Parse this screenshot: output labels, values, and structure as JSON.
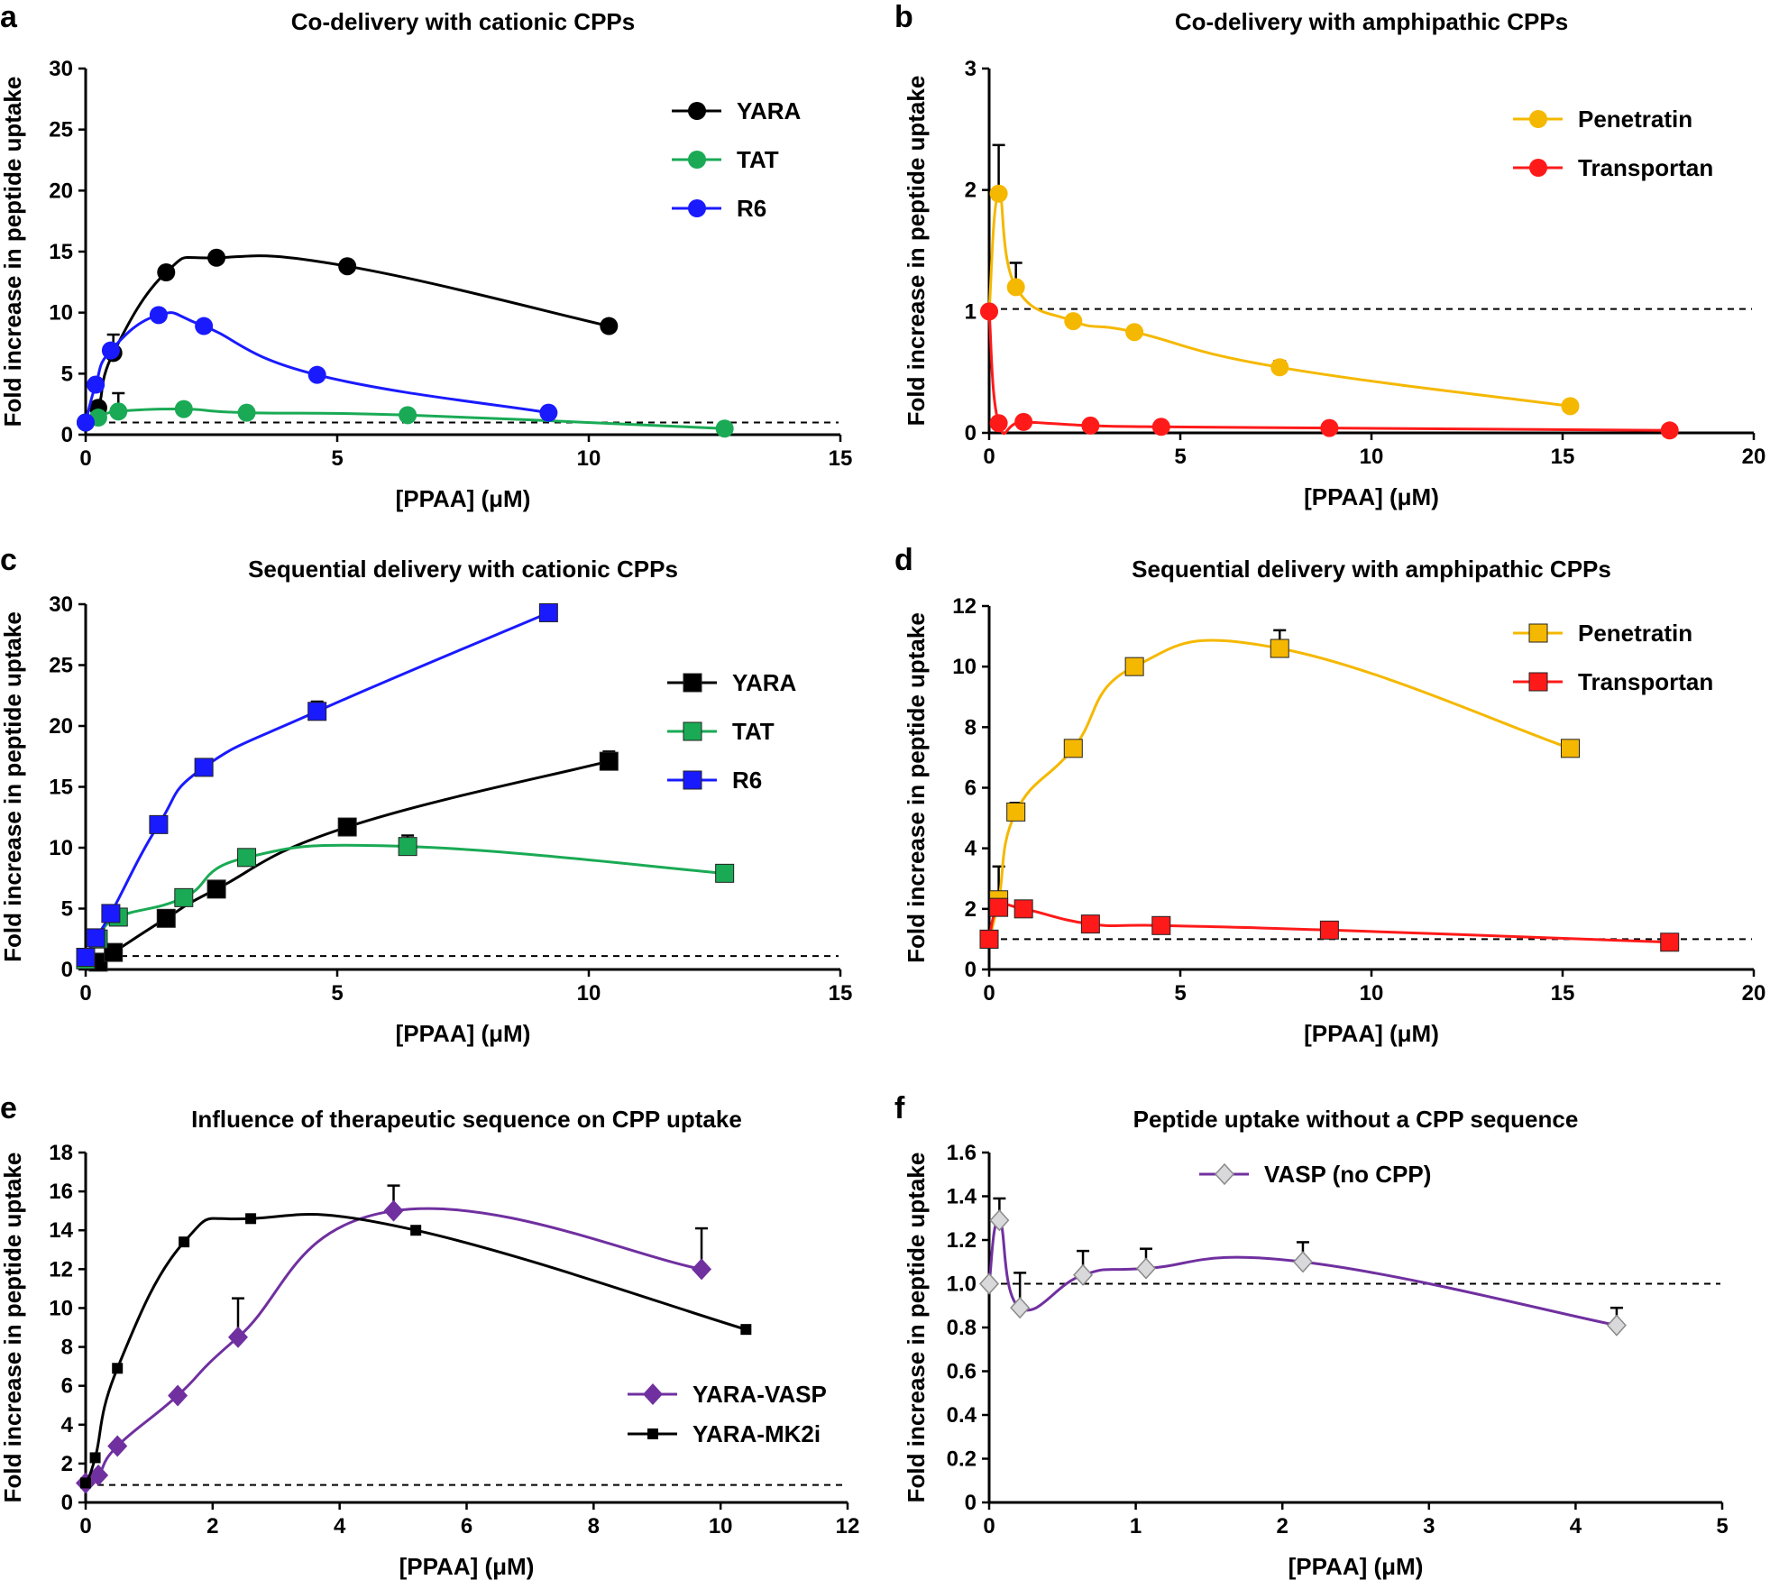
{
  "chart_data": [
    {
      "panel": "a",
      "type": "line",
      "title": "Co-delivery with cationic CPPs",
      "xlabel": "[PPAA] (μM)",
      "ylabel": "Fold increase in peptide uptake",
      "xlim": [
        0,
        15
      ],
      "ylim": [
        0,
        30
      ],
      "xticks": [
        0,
        5,
        10,
        15
      ],
      "yticks": [
        0,
        5,
        10,
        15,
        20,
        25,
        30
      ],
      "reference_line": 1,
      "legend_position": "top-right",
      "marker": "circle",
      "series": [
        {
          "name": "YARA",
          "color": "#000000",
          "x": [
            0,
            0.25,
            0.55,
            1.6,
            2.6,
            5.2,
            10.4
          ],
          "y": [
            1,
            2.2,
            6.7,
            13.3,
            14.5,
            13.8,
            8.9
          ],
          "err": [
            0,
            0,
            1.5,
            0,
            0,
            0,
            0
          ]
        },
        {
          "name": "TAT",
          "color": "#1aaa55",
          "x": [
            0,
            0.25,
            0.65,
            1.95,
            3.2,
            6.4,
            12.7
          ],
          "y": [
            1,
            1.4,
            1.9,
            2.1,
            1.8,
            1.6,
            0.5
          ],
          "err": [
            0,
            0,
            1.5,
            0,
            0,
            0,
            0
          ]
        },
        {
          "name": "R6",
          "color": "#1a1aff",
          "x": [
            0,
            0.2,
            0.5,
            1.45,
            2.35,
            4.6,
            9.2
          ],
          "y": [
            1,
            4.1,
            6.9,
            9.8,
            8.9,
            4.9,
            1.8
          ],
          "err": [
            0,
            0,
            0,
            0,
            0,
            0,
            0
          ]
        }
      ]
    },
    {
      "panel": "b",
      "type": "line",
      "title": "Co-delivery with  amphipathic CPPs",
      "xlabel": "[PPAA] (μM)",
      "ylabel": "Fold increase in peptide uptake",
      "xlim": [
        0,
        20
      ],
      "ylim": [
        0,
        3
      ],
      "xticks": [
        0,
        5,
        10,
        15,
        20
      ],
      "yticks": [
        0,
        1,
        2,
        3
      ],
      "reference_line": 1.02,
      "legend_position": "top-right",
      "marker": "circle",
      "series": [
        {
          "name": "Penetratin",
          "color": "#f5b800",
          "x": [
            0,
            0.25,
            0.7,
            2.2,
            3.8,
            7.6,
            15.2
          ],
          "y": [
            1,
            1.97,
            1.2,
            0.92,
            0.83,
            0.54,
            0.22
          ],
          "err": [
            0,
            0.4,
            0.2,
            0,
            0,
            0.05,
            0
          ]
        },
        {
          "name": "Transportan",
          "color": "#ff1a1a",
          "x": [
            0,
            0.25,
            0.9,
            2.65,
            4.5,
            8.9,
            17.8
          ],
          "y": [
            1,
            0.08,
            0.09,
            0.06,
            0.05,
            0.04,
            0.02
          ],
          "err": [
            0,
            0,
            0,
            0,
            0,
            0,
            0
          ]
        }
      ]
    },
    {
      "panel": "c",
      "type": "line",
      "title": "Sequential delivery with cationic CPPs",
      "xlabel": "[PPAA] (μM)",
      "ylabel": "Fold increase in peptide uptake",
      "xlim": [
        0,
        15
      ],
      "ylim": [
        0,
        30
      ],
      "xticks": [
        0,
        5,
        10,
        15
      ],
      "yticks": [
        0,
        5,
        10,
        15,
        20,
        25,
        30
      ],
      "reference_line": 1.1,
      "legend_position": "top-right",
      "marker": "square",
      "series": [
        {
          "name": "YARA",
          "color": "#000000",
          "x": [
            0,
            0.25,
            0.55,
            1.6,
            2.6,
            5.2,
            10.4
          ],
          "y": [
            0.8,
            0.6,
            1.4,
            4.2,
            6.6,
            11.7,
            17.1
          ],
          "err": [
            0,
            0,
            0,
            0,
            0,
            0,
            0.8
          ]
        },
        {
          "name": "TAT",
          "color": "#1aaa55",
          "x": [
            0,
            0.25,
            0.65,
            1.95,
            3.2,
            6.4,
            12.7
          ],
          "y": [
            0.8,
            2.5,
            4.3,
            5.9,
            9.2,
            10.1,
            7.9
          ],
          "err": [
            0,
            0,
            0,
            0,
            0,
            0.9,
            0
          ]
        },
        {
          "name": "R6",
          "color": "#1a1aff",
          "x": [
            0,
            0.2,
            0.5,
            1.45,
            2.35,
            4.6,
            9.2
          ],
          "y": [
            1,
            2.6,
            4.6,
            11.9,
            16.6,
            21.2,
            29.3
          ],
          "err": [
            0,
            0,
            0,
            0,
            0,
            0.8,
            0
          ]
        }
      ]
    },
    {
      "panel": "d",
      "type": "line",
      "title": "Sequential delivery with amphipathic CPPs",
      "xlabel": "[PPAA] (μM)",
      "ylabel": "Fold increase in peptide uptake",
      "xlim": [
        0,
        20
      ],
      "ylim": [
        0,
        12
      ],
      "xticks": [
        0,
        5,
        10,
        15,
        20
      ],
      "yticks": [
        0,
        2,
        4,
        6,
        8,
        10,
        12
      ],
      "reference_line": 1,
      "legend_position": "top-right",
      "marker": "square",
      "series": [
        {
          "name": "Penetratin",
          "color": "#f5b800",
          "x": [
            0,
            0.25,
            0.7,
            2.2,
            3.8,
            7.6,
            15.2
          ],
          "y": [
            1,
            2.3,
            5.2,
            7.3,
            10.0,
            10.6,
            7.3
          ],
          "err": [
            0,
            1.1,
            0.3,
            0,
            0,
            0.6,
            0
          ]
        },
        {
          "name": "Transportan",
          "color": "#ff1a1a",
          "x": [
            0,
            0.25,
            0.9,
            2.65,
            4.5,
            8.9,
            17.8
          ],
          "y": [
            1,
            2.05,
            2.0,
            1.5,
            1.45,
            1.3,
            0.9
          ],
          "err": [
            0,
            0,
            0,
            0.1,
            0,
            0,
            0
          ]
        }
      ]
    },
    {
      "panel": "e",
      "type": "line",
      "title": "Influence of therapeutic sequence on CPP uptake",
      "xlabel": "[PPAA] (μM)",
      "ylabel": "Fold increase in peptide uptake",
      "xlim": [
        0,
        12
      ],
      "ylim": [
        0,
        18
      ],
      "xticks": [
        0,
        2,
        4,
        6,
        8,
        10,
        12
      ],
      "yticks": [
        0,
        2,
        4,
        6,
        8,
        10,
        12,
        14,
        16,
        18
      ],
      "reference_line": 0.9,
      "legend_position": "bottom-right",
      "series": [
        {
          "name": "YARA-VASP",
          "color": "#7030a0",
          "marker": "diamond",
          "x": [
            0,
            0.2,
            0.5,
            1.45,
            2.4,
            4.85,
            9.7
          ],
          "y": [
            1,
            1.4,
            2.9,
            5.5,
            8.5,
            15.0,
            12.0
          ],
          "err": [
            0,
            0,
            0,
            0,
            2.0,
            1.3,
            2.1
          ]
        },
        {
          "name": "YARA-MK2i",
          "color": "#000000",
          "marker": "smallsquare",
          "x": [
            0,
            0.15,
            0.5,
            1.55,
            2.6,
            5.2,
            10.4
          ],
          "y": [
            1,
            2.3,
            6.9,
            13.4,
            14.6,
            14.0,
            8.9
          ],
          "err": [
            0,
            0,
            0,
            0,
            0,
            0,
            0
          ]
        }
      ]
    },
    {
      "panel": "f",
      "type": "line",
      "title": "Peptide uptake without a CPP sequence",
      "xlabel": "[PPAA] (μM)",
      "ylabel": "Fold increase in peptide uptake",
      "xlim": [
        0,
        5
      ],
      "ylim": [
        0,
        1.6
      ],
      "xticks": [
        0,
        1,
        2,
        3,
        4,
        5
      ],
      "yticks": [
        "0",
        "0.2",
        "0.4",
        "0.6",
        "0.8",
        "1.0",
        "1.2",
        "1.4",
        "1.6"
      ],
      "reference_line": 1,
      "legend_position": "top-left",
      "series": [
        {
          "name": "VASP (no CPP)",
          "color": "#7030a0",
          "marker": "hollowdiamond",
          "x": [
            0,
            0.07,
            0.21,
            0.64,
            1.07,
            2.14,
            4.28
          ],
          "y": [
            1.0,
            1.29,
            0.89,
            1.04,
            1.07,
            1.1,
            0.81
          ],
          "err": [
            0,
            0.1,
            0.16,
            0.11,
            0.09,
            0.09,
            0.08
          ]
        }
      ]
    }
  ]
}
